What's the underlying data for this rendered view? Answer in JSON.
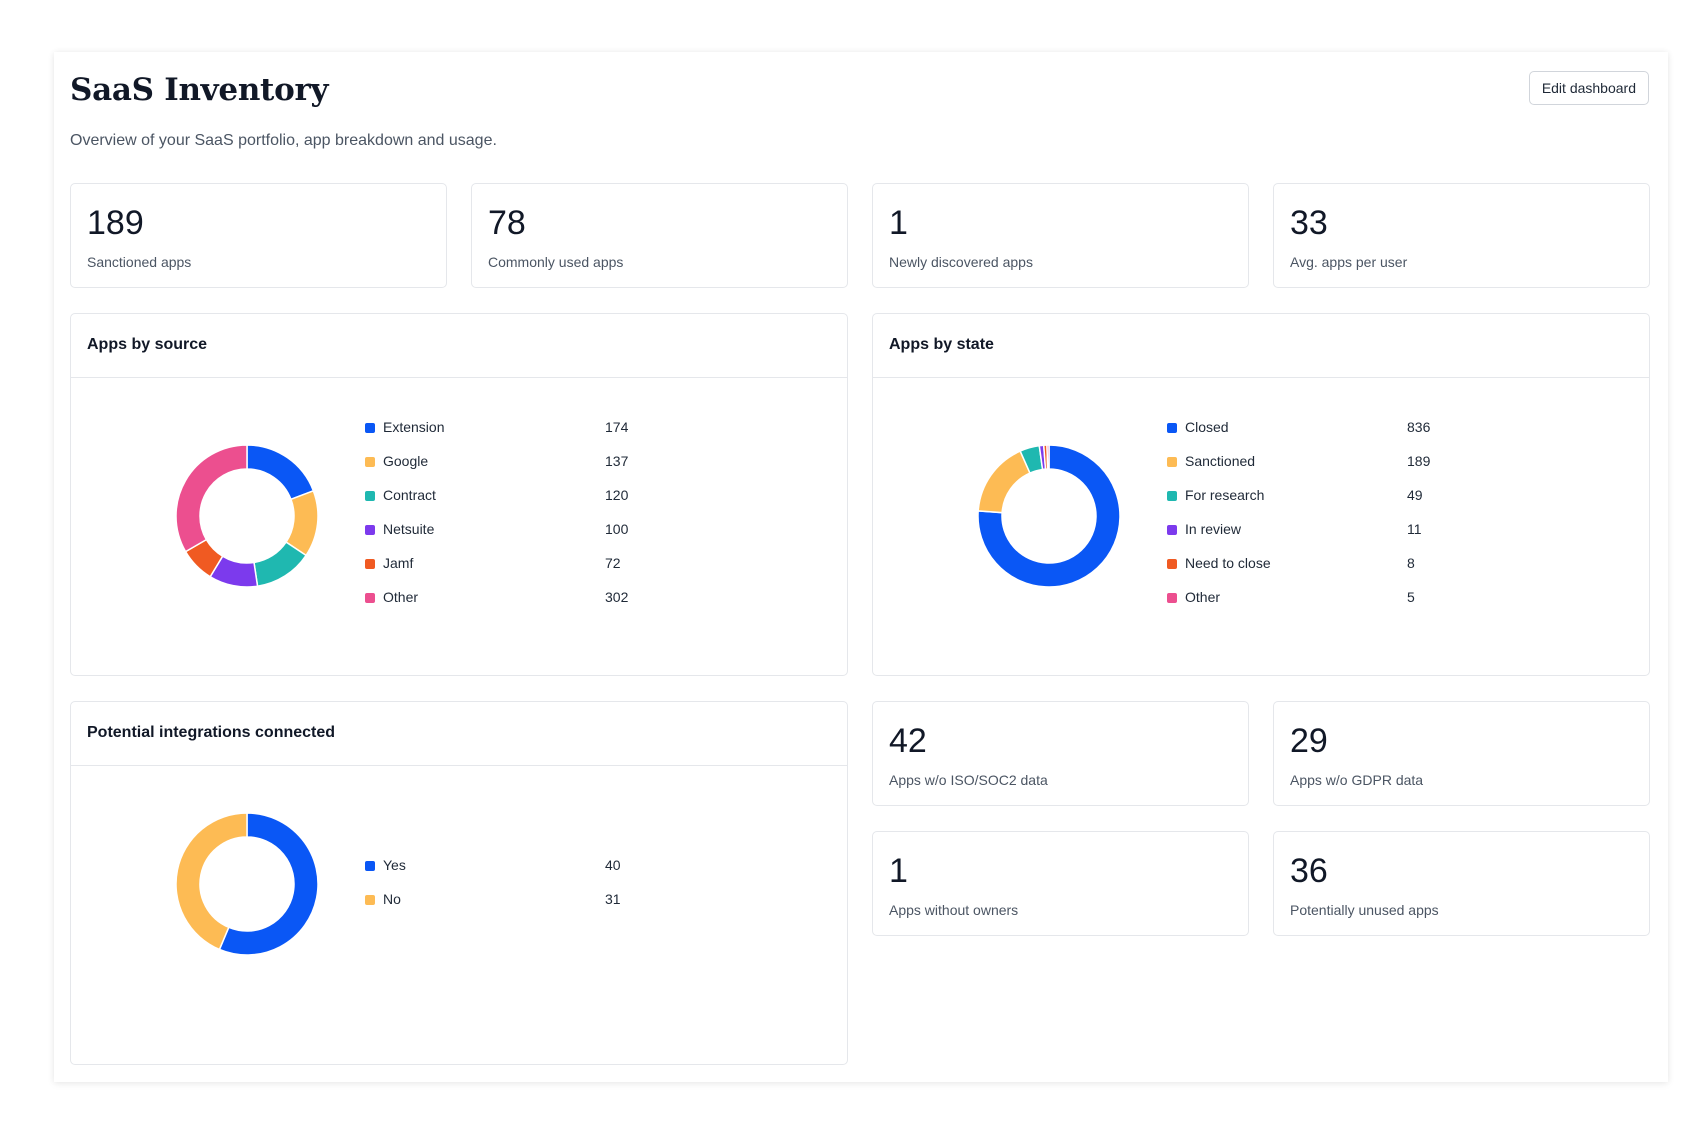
{
  "page": {
    "title": "SaaS Inventory",
    "subtitle": "Overview of your SaaS portfolio, app breakdown and usage.",
    "edit_button": "Edit dashboard"
  },
  "stats_top": [
    {
      "value": "189",
      "label": "Sanctioned apps"
    },
    {
      "value": "78",
      "label": "Commonly used apps"
    },
    {
      "value": "1",
      "label": "Newly discovered apps"
    },
    {
      "value": "33",
      "label": "Avg. apps per user"
    }
  ],
  "stats_bottom": [
    {
      "value": "42",
      "label": "Apps w/o ISO/SOC2 data"
    },
    {
      "value": "29",
      "label": "Apps w/o GDPR data"
    },
    {
      "value": "1",
      "label": "Apps without owners"
    },
    {
      "value": "36",
      "label": "Potentially unused apps"
    }
  ],
  "colors": {
    "blue": "#0a57f5",
    "yellow": "#fdbb54",
    "teal": "#1fb8b0",
    "purple": "#7c3aed",
    "orange": "#f05a22",
    "pink": "#ec4f8f"
  },
  "chart_data": [
    {
      "type": "pie",
      "title": "Apps by source",
      "categories": [
        "Extension",
        "Google",
        "Contract",
        "Netsuite",
        "Jamf",
        "Other"
      ],
      "values": [
        174,
        137,
        120,
        100,
        72,
        302
      ],
      "colors": [
        "#0a57f5",
        "#fdbb54",
        "#1fb8b0",
        "#7c3aed",
        "#f05a22",
        "#ec4f8f"
      ]
    },
    {
      "type": "pie",
      "title": "Apps by state",
      "categories": [
        "Closed",
        "Sanctioned",
        "For research",
        "In review",
        "Need to close",
        "Other"
      ],
      "values": [
        836,
        189,
        49,
        11,
        8,
        5
      ],
      "colors": [
        "#0a57f5",
        "#fdbb54",
        "#1fb8b0",
        "#7c3aed",
        "#f05a22",
        "#ec4f8f"
      ]
    },
    {
      "type": "pie",
      "title": "Potential integrations connected",
      "categories": [
        "Yes",
        "No"
      ],
      "values": [
        40,
        31
      ],
      "colors": [
        "#0a57f5",
        "#fdbb54"
      ]
    }
  ]
}
